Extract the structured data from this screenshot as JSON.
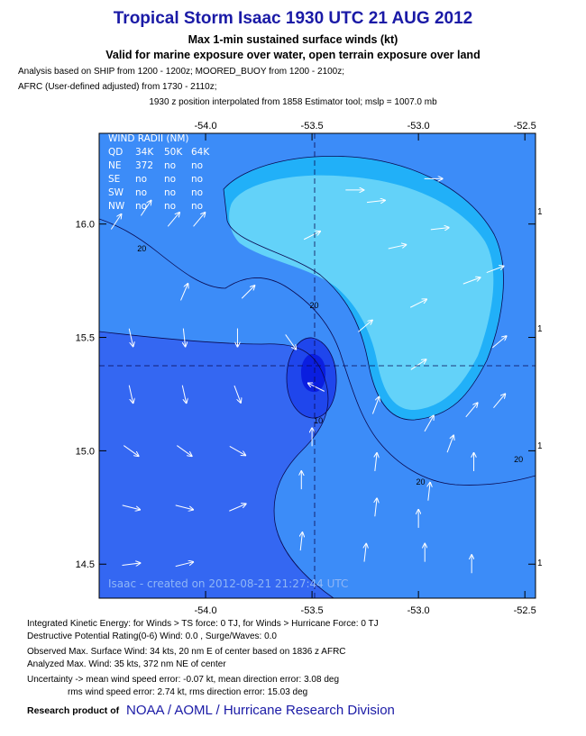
{
  "header": {
    "title": "Tropical Storm Isaac 1930 UTC 21 AUG 2012",
    "subtitle1": "Max 1-min sustained surface winds (kt)",
    "subtitle2": "Valid for marine exposure over water, open terrain exposure over land",
    "analysis_line1": "Analysis based on SHIP from 1200 - 1200z; MOORED_BUOY from 1200 - 2100z;",
    "analysis_line2": "AFRC (User-defined adjusted) from 1730 - 2110z;",
    "position_note": "1930 z position interpolated from 1858 Estimator tool; mslp = 1007.0 mb"
  },
  "chart_data": {
    "type": "contour",
    "xlim": [
      -54.5,
      -52.45
    ],
    "ylim": [
      14.35,
      16.4
    ],
    "x_ticks": [
      -54.0,
      -53.5,
      -53.0,
      -52.5
    ],
    "x_tick_labels": [
      "-54.0",
      "-53.5",
      "-53.0",
      "-52.5"
    ],
    "y_ticks": [
      14.5,
      15.0,
      15.5,
      16.0
    ],
    "y_tick_labels": [
      "14.5",
      "15.0",
      "15.5",
      "16.0"
    ],
    "center": {
      "lon": -53.46,
      "lat": 15.34
    },
    "contour_levels": [
      10,
      20
    ],
    "contour_labels": [
      {
        "text": "20",
        "lon": -54.3,
        "lat": 15.88
      },
      {
        "text": "20",
        "lon": -53.49,
        "lat": 15.63
      },
      {
        "text": "10",
        "lon": -53.47,
        "lat": 15.12
      },
      {
        "text": "20",
        "lon": -52.99,
        "lat": 14.85
      },
      {
        "text": "20",
        "lon": -52.53,
        "lat": 14.95
      }
    ],
    "right_edge_label": "1",
    "fill_colors": {
      "lt10": "#0a1ee0",
      "band10_15": "#1f46ec",
      "band15_20": "#3467f2",
      "band20_25": "#3c8cf8",
      "band25_30": "#21b0f8",
      "gt30": "#63d2f9"
    },
    "wind_radii_table": {
      "title": "WIND RADII (NM)",
      "header": [
        "QD",
        "34K",
        "50K",
        "64K"
      ],
      "rows": [
        [
          "NE",
          "372",
          "no",
          "no"
        ],
        [
          "SE",
          "no",
          "no",
          "no"
        ],
        [
          "SW",
          "no",
          "no",
          "no"
        ],
        [
          "NW",
          "no",
          "no",
          "no"
        ]
      ]
    },
    "watermark": "Isaac - created on 2012-08-21 21:27:44 UTC",
    "wind_vectors": [
      {
        "lon": -54.42,
        "lat": 16.01,
        "u": 0.4,
        "v": 0.6
      },
      {
        "lon": -54.28,
        "lat": 16.07,
        "u": 0.4,
        "v": 0.6
      },
      {
        "lon": -54.15,
        "lat": 16.02,
        "u": 0.5,
        "v": 0.6
      },
      {
        "lon": -54.03,
        "lat": 16.02,
        "u": 0.5,
        "v": 0.6
      },
      {
        "lon": -54.1,
        "lat": 15.7,
        "u": 0.3,
        "v": 0.7
      },
      {
        "lon": -53.8,
        "lat": 15.7,
        "u": 0.5,
        "v": 0.5
      },
      {
        "lon": -53.5,
        "lat": 15.95,
        "u": 0.6,
        "v": 0.3
      },
      {
        "lon": -53.2,
        "lat": 16.1,
        "u": 0.9,
        "v": 0.1
      },
      {
        "lon": -53.1,
        "lat": 15.9,
        "u": 0.9,
        "v": 0.2
      },
      {
        "lon": -53.3,
        "lat": 16.15,
        "u": 0.9,
        "v": 0.0
      },
      {
        "lon": -52.93,
        "lat": 16.2,
        "u": 0.9,
        "v": 0.0
      },
      {
        "lon": -52.9,
        "lat": 15.98,
        "u": 0.9,
        "v": 0.1
      },
      {
        "lon": -52.75,
        "lat": 15.75,
        "u": 0.8,
        "v": 0.3
      },
      {
        "lon": -52.64,
        "lat": 15.8,
        "u": 0.8,
        "v": 0.3
      },
      {
        "lon": -53.0,
        "lat": 15.65,
        "u": 0.8,
        "v": 0.4
      },
      {
        "lon": -53.25,
        "lat": 15.55,
        "u": 0.6,
        "v": 0.5
      },
      {
        "lon": -52.62,
        "lat": 15.48,
        "u": 0.6,
        "v": 0.5
      },
      {
        "lon": -53.0,
        "lat": 15.38,
        "u": 0.6,
        "v": 0.4
      },
      {
        "lon": -52.75,
        "lat": 15.18,
        "u": 0.5,
        "v": 0.6
      },
      {
        "lon": -52.62,
        "lat": 15.22,
        "u": 0.5,
        "v": 0.6
      },
      {
        "lon": -52.95,
        "lat": 15.12,
        "u": 0.4,
        "v": 0.7
      },
      {
        "lon": -53.2,
        "lat": 15.2,
        "u": 0.3,
        "v": 0.8
      },
      {
        "lon": -52.85,
        "lat": 15.03,
        "u": 0.3,
        "v": 0.8
      },
      {
        "lon": -53.2,
        "lat": 14.95,
        "u": 0.1,
        "v": 0.9
      },
      {
        "lon": -52.95,
        "lat": 14.82,
        "u": 0.1,
        "v": 0.9
      },
      {
        "lon": -52.74,
        "lat": 14.95,
        "u": 0.0,
        "v": 0.9
      },
      {
        "lon": -53.2,
        "lat": 14.75,
        "u": 0.1,
        "v": 0.9
      },
      {
        "lon": -53.0,
        "lat": 14.7,
        "u": 0.0,
        "v": 0.9
      },
      {
        "lon": -53.48,
        "lat": 15.28,
        "u": -0.8,
        "v": 0.4
      },
      {
        "lon": -53.5,
        "lat": 15.06,
        "u": 0.0,
        "v": 0.9
      },
      {
        "lon": -53.55,
        "lat": 14.87,
        "u": 0.0,
        "v": 0.9
      },
      {
        "lon": -53.55,
        "lat": 14.6,
        "u": 0.1,
        "v": 0.9
      },
      {
        "lon": -53.25,
        "lat": 14.55,
        "u": 0.1,
        "v": 0.9
      },
      {
        "lon": -52.97,
        "lat": 14.55,
        "u": 0.0,
        "v": 0.9
      },
      {
        "lon": -52.75,
        "lat": 14.5,
        "u": 0.0,
        "v": 0.9
      },
      {
        "lon": -54.35,
        "lat": 15.5,
        "u": 0.2,
        "v": -0.9
      },
      {
        "lon": -54.1,
        "lat": 15.5,
        "u": 0.1,
        "v": -0.9
      },
      {
        "lon": -53.85,
        "lat": 15.5,
        "u": 0.0,
        "v": -0.9
      },
      {
        "lon": -53.6,
        "lat": 15.48,
        "u": 0.5,
        "v": -0.7
      },
      {
        "lon": -54.35,
        "lat": 15.25,
        "u": 0.2,
        "v": -0.9
      },
      {
        "lon": -54.1,
        "lat": 15.25,
        "u": 0.2,
        "v": -0.9
      },
      {
        "lon": -53.85,
        "lat": 15.25,
        "u": 0.3,
        "v": -0.8
      },
      {
        "lon": -54.35,
        "lat": 15.0,
        "u": 0.7,
        "v": -0.5
      },
      {
        "lon": -54.1,
        "lat": 15.0,
        "u": 0.7,
        "v": -0.5
      },
      {
        "lon": -53.85,
        "lat": 15.0,
        "u": 0.7,
        "v": -0.4
      },
      {
        "lon": -54.35,
        "lat": 14.75,
        "u": 0.8,
        "v": -0.2
      },
      {
        "lon": -54.1,
        "lat": 14.75,
        "u": 0.8,
        "v": -0.2
      },
      {
        "lon": -53.85,
        "lat": 14.75,
        "u": 0.7,
        "v": 0.3
      },
      {
        "lon": -54.35,
        "lat": 14.5,
        "u": 0.8,
        "v": 0.1
      },
      {
        "lon": -54.1,
        "lat": 14.5,
        "u": 0.8,
        "v": 0.2
      }
    ]
  },
  "footer": {
    "ike": "Integrated Kinetic Energy: for Winds > TS force: 0 TJ, for Winds > Hurricane Force: 0 TJ",
    "dpr": "Destructive Potential Rating(0-6)  Wind: 0.0 , Surge/Waves: 0.0",
    "obs_max": "Observed Max. Surface Wind: 34 kts, 20 nm E of center based on 1836 z AFRC",
    "analyzed_max": "Analyzed Max. Wind: 35 kts, 372 nm  NE of center",
    "uncertainty1": "Uncertainty -> mean wind speed error:  -0.07 kt, mean direction error: 3.08 deg",
    "uncertainty2": "rms wind speed error: 2.74 kt, rms direction error: 15.03 deg",
    "credit_prefix": "Research product of",
    "credit_link": "NOAA  /  AOML  /  Hurricane Research Division"
  }
}
